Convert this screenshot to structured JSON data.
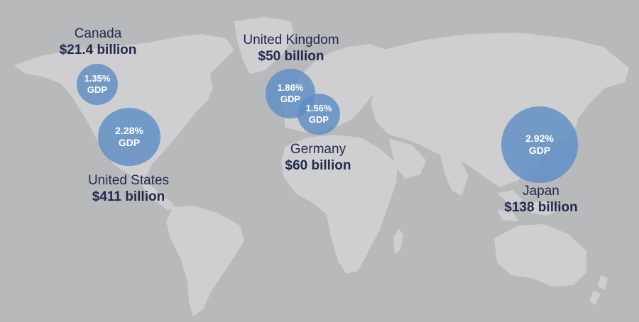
{
  "colors": {
    "background": "#b7b9bb",
    "land": "#cfcfd1",
    "bubble": "#5e8dc4",
    "text": "#242a4e"
  },
  "countries": [
    {
      "name": "Canada",
      "amount": "$21.4 billion",
      "gdp_pct": "1.35%",
      "gdp_label": "GDP"
    },
    {
      "name": "United States",
      "amount": "$411 billion",
      "gdp_pct": "2.28%",
      "gdp_label": "GDP"
    },
    {
      "name": "United Kingdom",
      "amount": "$50 billion",
      "gdp_pct": "1.86%",
      "gdp_label": "GDP"
    },
    {
      "name": "Germany",
      "amount": "$60 billion",
      "gdp_pct": "1.56%",
      "gdp_label": "GDP"
    },
    {
      "name": "Japan",
      "amount": "$138 billion",
      "gdp_pct": "2.92%",
      "gdp_label": "GDP"
    }
  ]
}
